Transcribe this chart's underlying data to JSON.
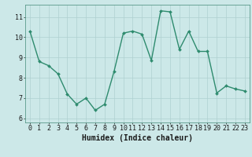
{
  "x": [
    0,
    1,
    2,
    3,
    4,
    5,
    6,
    7,
    8,
    9,
    10,
    11,
    12,
    13,
    14,
    15,
    16,
    17,
    18,
    19,
    20,
    21,
    22,
    23
  ],
  "y": [
    10.3,
    8.8,
    8.6,
    8.2,
    7.2,
    6.7,
    7.0,
    6.4,
    6.7,
    8.3,
    10.2,
    10.3,
    10.15,
    8.85,
    11.3,
    11.25,
    9.4,
    10.3,
    9.3,
    9.3,
    7.25,
    7.6,
    7.45,
    7.35
  ],
  "line_color": "#2e8b6e",
  "marker": "D",
  "marker_size": 2.0,
  "bg_color": "#cce8e8",
  "grid_color": "#afd0d0",
  "grid_color_major": "#c0dcdc",
  "xlabel": "Humidex (Indice chaleur)",
  "ylim": [
    5.8,
    11.6
  ],
  "xlim": [
    -0.5,
    23.5
  ],
  "yticks": [
    6,
    7,
    8,
    9,
    10,
    11
  ],
  "xticks": [
    0,
    1,
    2,
    3,
    4,
    5,
    6,
    7,
    8,
    9,
    10,
    11,
    12,
    13,
    14,
    15,
    16,
    17,
    18,
    19,
    20,
    21,
    22,
    23
  ],
  "tick_color": "#1a1a1a",
  "label_fontsize": 7,
  "tick_fontsize": 6,
  "line_width": 1.0,
  "spine_color": "#5a9a8a"
}
